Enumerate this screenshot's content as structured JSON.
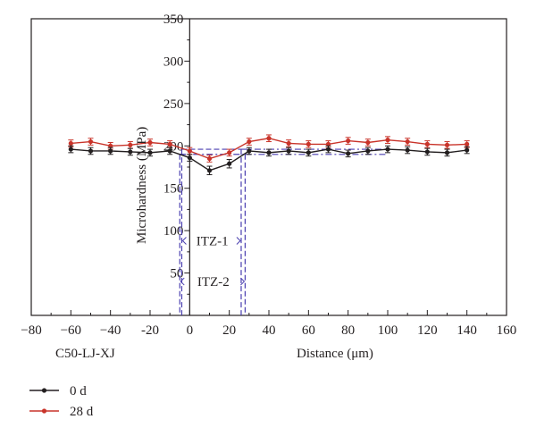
{
  "chart_data": {
    "type": "line",
    "xlabel": "Distance (μm)",
    "ylabel": "Microhardness (MPa)",
    "sample_label": "C50-LJ-XJ",
    "xlim": [
      -80,
      160
    ],
    "ylim": [
      0,
      350
    ],
    "xticks": [
      -80,
      -60,
      -40,
      -20,
      0,
      20,
      40,
      60,
      80,
      100,
      120,
      140,
      160
    ],
    "yticks": [
      50,
      100,
      150,
      200,
      250,
      300,
      350
    ],
    "xtick_labels": [
      "−80",
      "−60",
      "−40",
      "-20",
      "0",
      "20",
      "40",
      "60",
      "80",
      "100",
      "120",
      "140",
      "160"
    ],
    "ytick_labels": [
      "50",
      "100",
      "150",
      "200",
      "250",
      "300",
      "350"
    ],
    "grid": false,
    "legend_position": "bottom-left",
    "x": [
      -60,
      -50,
      -40,
      -30,
      -20,
      -10,
      0,
      10,
      20,
      30,
      40,
      50,
      60,
      70,
      80,
      90,
      100,
      110,
      120,
      130,
      140
    ],
    "series": [
      {
        "name": "0 d",
        "color": "#231f20",
        "values": [
          196,
          194,
          194,
          193,
          192,
          194,
          186,
          171,
          179,
          194,
          192,
          194,
          192,
          196,
          191,
          194,
          196,
          195,
          193,
          192,
          195
        ],
        "errors": [
          4,
          4,
          4,
          4,
          4,
          4,
          4,
          5,
          5,
          4,
          4,
          4,
          4,
          4,
          4,
          4,
          4,
          4,
          4,
          4,
          4
        ]
      },
      {
        "name": "28 d",
        "color": "#c9342a",
        "values": [
          203,
          205,
          200,
          201,
          204,
          202,
          194,
          185,
          192,
          205,
          209,
          203,
          202,
          202,
          206,
          204,
          207,
          205,
          202,
          201,
          202
        ],
        "errors": [
          4,
          4,
          4,
          4,
          4,
          4,
          4,
          4,
          4,
          4,
          4,
          4,
          4,
          4,
          4,
          4,
          4,
          4,
          4,
          4,
          4
        ]
      }
    ],
    "annotations": [
      {
        "text": "ITZ-1",
        "from": -4,
        "to": 26,
        "y": 88,
        "box_top": 196
      },
      {
        "text": "ITZ-2",
        "from": -5,
        "to": 28,
        "y": 40,
        "box_top": 190
      }
    ]
  }
}
